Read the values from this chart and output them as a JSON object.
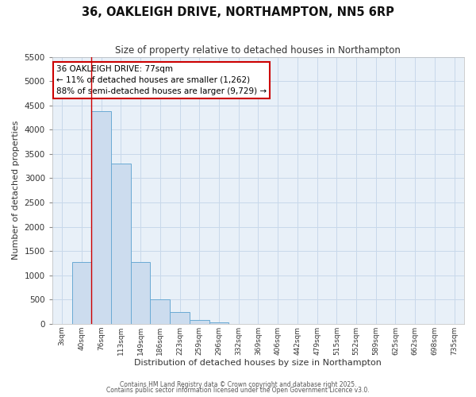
{
  "title": "36, OAKLEIGH DRIVE, NORTHAMPTON, NN5 6RP",
  "subtitle": "Size of property relative to detached houses in Northampton",
  "xlabel": "Distribution of detached houses by size in Northampton",
  "ylabel": "Number of detached properties",
  "bar_labels": [
    "3sqm",
    "40sqm",
    "76sqm",
    "113sqm",
    "149sqm",
    "186sqm",
    "223sqm",
    "259sqm",
    "296sqm",
    "332sqm",
    "369sqm",
    "406sqm",
    "442sqm",
    "479sqm",
    "515sqm",
    "552sqm",
    "589sqm",
    "625sqm",
    "662sqm",
    "698sqm",
    "735sqm"
  ],
  "bar_values": [
    0,
    1270,
    4380,
    3300,
    1280,
    500,
    235,
    80,
    30,
    0,
    0,
    0,
    0,
    0,
    0,
    0,
    0,
    0,
    0,
    0,
    0
  ],
  "bar_color": "#ccdcee",
  "bar_edge_color": "#6aaad4",
  "grid_color": "#c8d8ea",
  "background_color": "#e8f0f8",
  "fig_background": "#ffffff",
  "vline_color": "#cc0000",
  "vline_pos": 2,
  "ylim": [
    0,
    5500
  ],
  "yticks": [
    0,
    500,
    1000,
    1500,
    2000,
    2500,
    3000,
    3500,
    4000,
    4500,
    5000,
    5500
  ],
  "annotation_title": "36 OAKLEIGH DRIVE: 77sqm",
  "annotation_line1": "← 11% of detached houses are smaller (1,262)",
  "annotation_line2": "88% of semi-detached houses are larger (9,729) →",
  "annotation_box_facecolor": "#ffffff",
  "annotation_box_edgecolor": "#cc0000",
  "footer1": "Contains HM Land Registry data © Crown copyright and database right 2025.",
  "footer2": "Contains public sector information licensed under the Open Government Licence v3.0."
}
